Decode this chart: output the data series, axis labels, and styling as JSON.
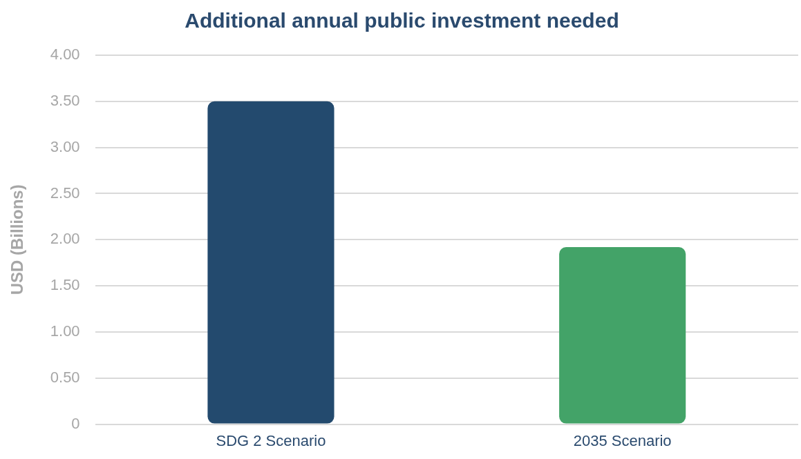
{
  "chart_data": {
    "type": "bar",
    "title": "Additional annual public investment needed",
    "ylabel": "USD (Billions)",
    "categories": [
      "SDG 2 Scenario",
      "2035 Scenario"
    ],
    "values": [
      3.5,
      1.92
    ],
    "colors": [
      "#234a6e",
      "#43a368"
    ],
    "ylim": [
      0,
      4
    ],
    "yticks": [
      {
        "value": 0,
        "label": "0"
      },
      {
        "value": 0.5,
        "label": "0.50"
      },
      {
        "value": 1,
        "label": "1.00"
      },
      {
        "value": 1.5,
        "label": "1.50"
      },
      {
        "value": 2,
        "label": "2.00"
      },
      {
        "value": 2.5,
        "label": "2.50"
      },
      {
        "value": 3,
        "label": "3.00"
      },
      {
        "value": 3.5,
        "label": "3.50"
      },
      {
        "value": 4,
        "label": "4.00"
      }
    ],
    "grid": "y",
    "legend": false
  }
}
